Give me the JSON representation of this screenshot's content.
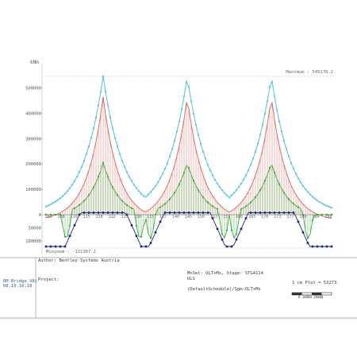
{
  "chart_data": {
    "type": "line",
    "unit": "kNm",
    "ylim": [
      -130000,
      545176.2
    ],
    "y_ticks_positive": [
      "500000",
      "400000",
      "300000",
      "200000",
      "100000",
      "0"
    ],
    "y_ticks_negative": [
      "50000",
      "100000"
    ],
    "x_labels": [
      "103",
      "108",
      "110",
      "115",
      "118",
      "122",
      "125",
      "130",
      "133",
      "137",
      "140",
      "145",
      "150",
      "153",
      "157",
      "160",
      "165",
      "170",
      "173",
      "177",
      "180",
      "184",
      "188"
    ],
    "maximum_label": "Maximum : 545176.2",
    "minimum_label": "Minimum : -121387.2",
    "peaks": [
      {
        "index": 0,
        "max_envelope": 545176.2,
        "max_red": 490000,
        "max_green": 215000
      },
      {
        "index": 1,
        "max_envelope": 545176.2,
        "max_red": 490000,
        "max_green": 215000
      },
      {
        "index": 2,
        "max_envelope": 545176.2,
        "max_red": 490000,
        "max_green": 215000
      }
    ],
    "trough_min": -121387.2,
    "series": [
      {
        "key": "cyan",
        "color": "#5ec8e0"
      },
      {
        "key": "red",
        "color": "#e05a50"
      },
      {
        "key": "green",
        "color": "#3cad3c"
      },
      {
        "key": "navy",
        "color": "#1a237e"
      }
    ],
    "grid": false
  },
  "footer": {
    "author": "Author: Bentley Systems Austria",
    "project": "Project:",
    "left_small_1": "RM Bridge V8i",
    "left_small_2": "08.10.16.18",
    "mnset": "MnSet: ULT+Mx, Stage: STG4114",
    "uls": "ULS",
    "schedule": "(DefaultSchedule)/Sgm-ULT+Mx",
    "scale": "1 cm Plot = 53273.",
    "scale_ticks": "0     10000    20000"
  }
}
